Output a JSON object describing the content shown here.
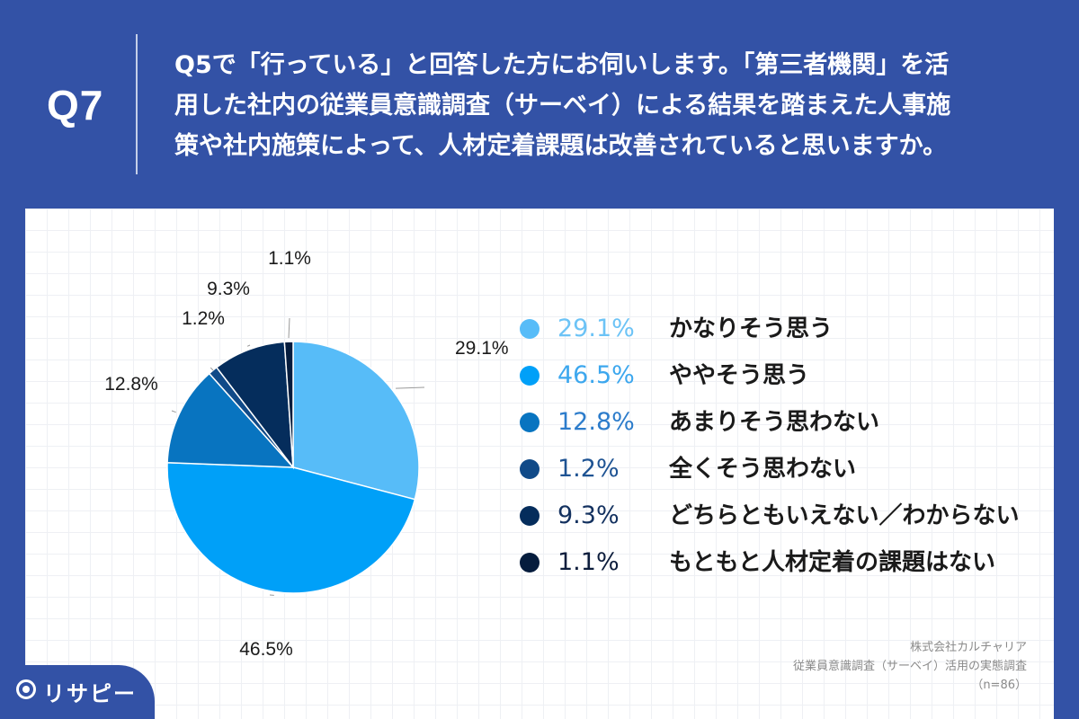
{
  "header": {
    "question_number": "Q7",
    "question_lines": [
      "Q5で「行っている」と回答した方にお伺いします。「第三者機関」を活",
      "用した社内の従業員意識調査（サーベイ）による結果を踏まえた人事施",
      "策や社内施策によって、人材定着課題は改善されていると思いますか。"
    ]
  },
  "chart_data": {
    "type": "pie",
    "start_angle": "12 o'clock, clockwise",
    "slices": [
      {
        "label": "かなりそう思う",
        "value": 29.1,
        "value_text": "29.1%",
        "color": "#57bcf8",
        "text_color": "#6cc3f6"
      },
      {
        "label": "ややそう思う",
        "value": 46.5,
        "value_text": "46.5%",
        "color": "#00a0f8",
        "text_color": "#3ca7ee"
      },
      {
        "label": "あまりそう思わない",
        "value": 12.8,
        "value_text": "12.8%",
        "color": "#0874c0",
        "text_color": "#2c7ccb"
      },
      {
        "label": "全くそう思わない",
        "value": 1.2,
        "value_text": "1.2%",
        "color": "#104a88",
        "text_color": "#1e5393"
      },
      {
        "label": "どちらともいえない／わからない",
        "value": 9.3,
        "value_text": "9.3%",
        "color": "#052d5c",
        "text_color": "#13315f"
      },
      {
        "label": "もともと人材定着の課題はない",
        "value": 1.1,
        "value_text": "1.1%",
        "color": "#051c3d",
        "text_color": "#0d1d3c"
      }
    ]
  },
  "source": {
    "company": "株式会社カルチャリア",
    "survey": "従業員意識調査（サーベイ）活用の実態調査",
    "sample": "（n=86）"
  },
  "logo": {
    "text": "リサピー"
  }
}
